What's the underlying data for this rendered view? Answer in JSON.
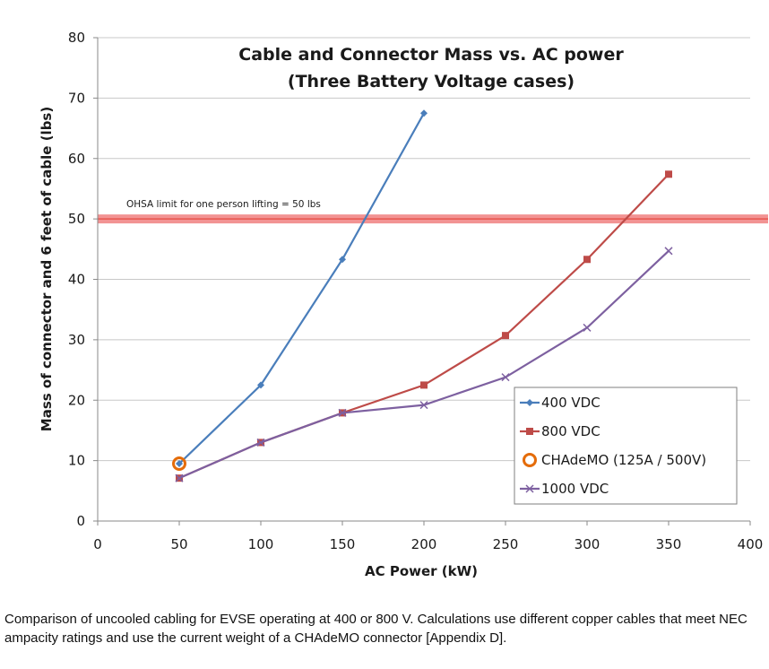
{
  "chart_data": {
    "type": "line",
    "title": "Cable and Connector Mass vs. AC power",
    "subtitle": "(Three Battery Voltage cases)",
    "xlabel": "AC Power (kW)",
    "ylabel": "Mass of connector and 6 feet of cable (lbs)",
    "xlim": [
      0,
      400
    ],
    "ylim": [
      0,
      80
    ],
    "xticks": [
      0,
      50,
      100,
      150,
      200,
      250,
      300,
      350,
      400
    ],
    "yticks": [
      0,
      10,
      20,
      30,
      40,
      50,
      60,
      70,
      80
    ],
    "grid": "horizontal",
    "legend_position": "bottom-right",
    "series": [
      {
        "name": "400 VDC",
        "color": "#4a7ebb",
        "marker": "diamond",
        "x": [
          50,
          100,
          150,
          200
        ],
        "y": [
          9.5,
          22.5,
          43.3,
          67.5
        ]
      },
      {
        "name": "800 VDC",
        "color": "#be4b48",
        "marker": "square",
        "x": [
          50,
          100,
          150,
          200,
          250,
          300,
          350
        ],
        "y": [
          7.1,
          13.0,
          17.9,
          22.5,
          30.7,
          43.3,
          57.4
        ]
      },
      {
        "name": "CHAdeMO (125A / 500V)",
        "color": "#e46c0a",
        "marker": "circle",
        "x": [
          50
        ],
        "y": [
          9.5
        ]
      },
      {
        "name": "1000 VDC",
        "color": "#7d60a0",
        "marker": "x",
        "x": [
          50,
          100,
          150,
          200,
          250,
          300,
          350
        ],
        "y": [
          7.1,
          13.0,
          17.9,
          19.2,
          23.8,
          32.0,
          44.7
        ]
      }
    ],
    "annotations": [
      {
        "text": "OHSA  limit for one person lifting = 50 lbs",
        "y": 50,
        "color": "#f08080"
      }
    ]
  },
  "caption": "Comparison of uncooled cabling for EVSE operating at 400 or 800 V. Calculations use different copper cables that meet NEC ampacity ratings and use the current weight of a CHAdeMO connector [Appendix D]."
}
